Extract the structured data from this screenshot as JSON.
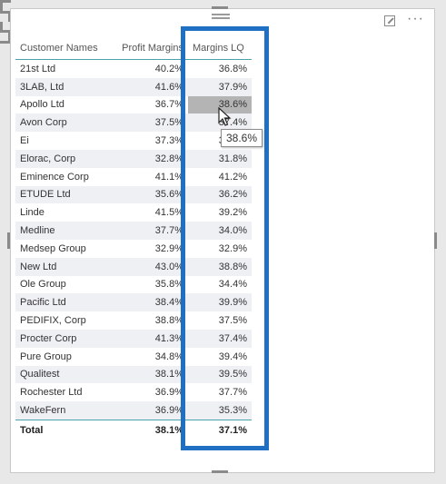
{
  "table": {
    "headers": [
      "Customer Names",
      "Profit Margins",
      "Margins LQ"
    ],
    "rows": [
      [
        "21st Ltd",
        "40.2%",
        "36.8%"
      ],
      [
        "3LAB, Ltd",
        "41.6%",
        "37.9%"
      ],
      [
        "Apollo Ltd",
        "36.7%",
        "38.6%"
      ],
      [
        "Avon Corp",
        "37.5%",
        "37.4%"
      ],
      [
        "Ei",
        "37.3%",
        "37.0%"
      ],
      [
        "Elorac, Corp",
        "32.8%",
        "31.8%"
      ],
      [
        "Eminence Corp",
        "41.1%",
        "41.2%"
      ],
      [
        "ETUDE Ltd",
        "35.6%",
        "36.2%"
      ],
      [
        "Linde",
        "41.5%",
        "39.2%"
      ],
      [
        "Medline",
        "37.7%",
        "34.0%"
      ],
      [
        "Medsep Group",
        "32.9%",
        "32.9%"
      ],
      [
        "New Ltd",
        "43.0%",
        "38.8%"
      ],
      [
        "Ole Group",
        "35.8%",
        "34.4%"
      ],
      [
        "Pacific Ltd",
        "38.4%",
        "39.9%"
      ],
      [
        "PEDIFIX, Corp",
        "38.8%",
        "37.5%"
      ],
      [
        "Procter Corp",
        "41.3%",
        "37.4%"
      ],
      [
        "Pure Group",
        "34.8%",
        "39.4%"
      ],
      [
        "Qualitest",
        "38.1%",
        "39.5%"
      ],
      [
        "Rochester Ltd",
        "36.9%",
        "37.7%"
      ],
      [
        "WakeFern",
        "36.9%",
        "35.3%"
      ]
    ],
    "total": [
      "Total",
      "38.1%",
      "37.1%"
    ]
  },
  "tooltip": {
    "text": "38.6%"
  },
  "highlight": {
    "row_index": 2,
    "color": "#b4b4b4"
  },
  "annotation": {
    "box_color": "#1f6fc2"
  },
  "icons": {
    "focus": "focus-mode-icon",
    "more": "more-options-icon",
    "drag": "drag-grip-icon",
    "pointer": "mouse-pointer-icon"
  }
}
